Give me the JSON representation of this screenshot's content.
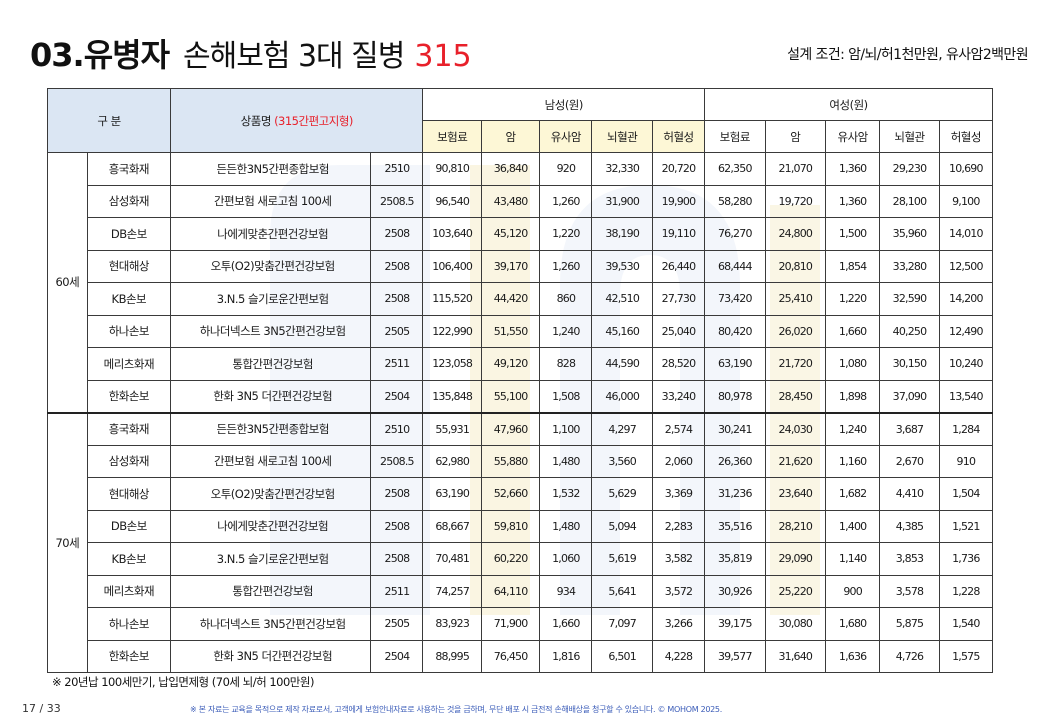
{
  "title": {
    "bold": "03.유병자",
    "normal": "손해보험 3대 질병",
    "number": "315"
  },
  "design_condition": "설계 조건: 암/뇌/허1천만원, 유사암2백만원",
  "table": {
    "header": {
      "division": "구 분",
      "product_prefix": "상품명 ",
      "product_accent": "(315간편고지형)",
      "male": "남성(원)",
      "female": "여성(원)",
      "sub": [
        "보험료",
        "암",
        "유사암",
        "뇌혈관",
        "허혈성",
        "보험료",
        "암",
        "유사암",
        "뇌혈관",
        "허혈성"
      ]
    },
    "groups": [
      {
        "age": "60세",
        "rows": [
          {
            "company": "흥국화재",
            "product": "든든한3N5간편종합보험",
            "code": "2510",
            "values": [
              "90,810",
              "36,840",
              "920",
              "32,330",
              "20,720",
              "62,350",
              "21,070",
              "1,360",
              "29,230",
              "10,690"
            ]
          },
          {
            "company": "삼성화재",
            "product": "간편보험 새로고침 100세",
            "code": "2508.5",
            "values": [
              "96,540",
              "43,480",
              "1,260",
              "31,900",
              "19,900",
              "58,280",
              "19,720",
              "1,360",
              "28,100",
              "9,100"
            ]
          },
          {
            "company": "DB손보",
            "product": "나에게맞춘간편건강보험",
            "code": "2508",
            "values": [
              "103,640",
              "45,120",
              "1,220",
              "38,190",
              "19,110",
              "76,270",
              "24,800",
              "1,500",
              "35,960",
              "14,010"
            ]
          },
          {
            "company": "현대해상",
            "product": "오투(O2)맞춤간편건강보험",
            "code": "2508",
            "values": [
              "106,400",
              "39,170",
              "1,260",
              "39,530",
              "26,440",
              "68,444",
              "20,810",
              "1,854",
              "33,280",
              "12,500"
            ]
          },
          {
            "company": "KB손보",
            "product": "3.N.5 슬기로운간편보험",
            "code": "2508",
            "values": [
              "115,520",
              "44,420",
              "860",
              "42,510",
              "27,730",
              "73,420",
              "25,410",
              "1,220",
              "32,590",
              "14,200"
            ]
          },
          {
            "company": "하나손보",
            "product": "하나더넥스트 3N5간편건강보험",
            "code": "2505",
            "values": [
              "122,990",
              "51,550",
              "1,240",
              "45,160",
              "25,040",
              "80,420",
              "26,020",
              "1,660",
              "40,250",
              "12,490"
            ]
          },
          {
            "company": "메리츠화재",
            "product": "통합간편건강보험",
            "code": "2511",
            "values": [
              "123,058",
              "49,120",
              "828",
              "44,590",
              "28,520",
              "63,190",
              "21,720",
              "1,080",
              "30,150",
              "10,240"
            ]
          },
          {
            "company": "한화손보",
            "product": "한화 3N5 더간편건강보험",
            "code": "2504",
            "values": [
              "135,848",
              "55,100",
              "1,508",
              "46,000",
              "33,240",
              "80,978",
              "28,450",
              "1,898",
              "37,090",
              "13,540"
            ]
          }
        ]
      },
      {
        "age": "70세",
        "rows": [
          {
            "company": "흥국화재",
            "product": "든든한3N5간편종합보험",
            "code": "2510",
            "values": [
              "55,931",
              "47,960",
              "1,100",
              "4,297",
              "2,574",
              "30,241",
              "24,030",
              "1,240",
              "3,687",
              "1,284"
            ]
          },
          {
            "company": "삼성화재",
            "product": "간편보험 새로고침 100세",
            "code": "2508.5",
            "values": [
              "62,980",
              "55,880",
              "1,480",
              "3,560",
              "2,060",
              "26,360",
              "21,620",
              "1,160",
              "2,670",
              "910"
            ]
          },
          {
            "company": "현대해상",
            "product": "오투(O2)맞춤간편건강보험",
            "code": "2508",
            "values": [
              "63,190",
              "52,660",
              "1,532",
              "5,629",
              "3,369",
              "31,236",
              "23,640",
              "1,682",
              "4,410",
              "1,504"
            ]
          },
          {
            "company": "DB손보",
            "product": "나에게맞춘간편건강보험",
            "code": "2508",
            "values": [
              "68,667",
              "59,810",
              "1,480",
              "5,094",
              "2,283",
              "35,516",
              "28,210",
              "1,400",
              "4,385",
              "1,521"
            ]
          },
          {
            "company": "KB손보",
            "product": "3.N.5 슬기로운간편보험",
            "code": "2508",
            "values": [
              "70,481",
              "60,220",
              "1,060",
              "5,619",
              "3,582",
              "35,819",
              "29,090",
              "1,140",
              "3,853",
              "1,736"
            ]
          },
          {
            "company": "메리츠화재",
            "product": "통합간편건강보험",
            "code": "2511",
            "values": [
              "74,257",
              "64,110",
              "934",
              "5,641",
              "3,572",
              "30,926",
              "25,220",
              "900",
              "3,578",
              "1,228"
            ]
          },
          {
            "company": "하나손보",
            "product": "하나더넥스트 3N5간편건강보험",
            "code": "2505",
            "values": [
              "83,923",
              "71,900",
              "1,660",
              "7,097",
              "3,266",
              "39,175",
              "30,080",
              "1,680",
              "5,875",
              "1,540"
            ]
          },
          {
            "company": "한화손보",
            "product": "한화 3N5 더간편건강보험",
            "code": "2504",
            "values": [
              "88,995",
              "76,450",
              "1,816",
              "6,501",
              "4,228",
              "39,577",
              "31,640",
              "1,636",
              "4,726",
              "1,575"
            ]
          }
        ]
      }
    ]
  },
  "footnote": "※ 20년납 100세만기, 납입면제형 (70세 뇌/허 100만원)",
  "page_number": "17 / 33",
  "disclaimer": "※ 본 자료는 교육을 목적으로 제작 자료로서, 고객에게 보험안내자료로 사용하는 것을 금하며, 무단 배포 시 금전적 손해배상을 청구할 수 있습니다. © MOHOM 2025.",
  "colors": {
    "accent": "#e8202a",
    "header_blue": "#dbe6f3",
    "header_yellow": "#fdf7d6",
    "disclaimer_blue": "#3b5cb8"
  }
}
